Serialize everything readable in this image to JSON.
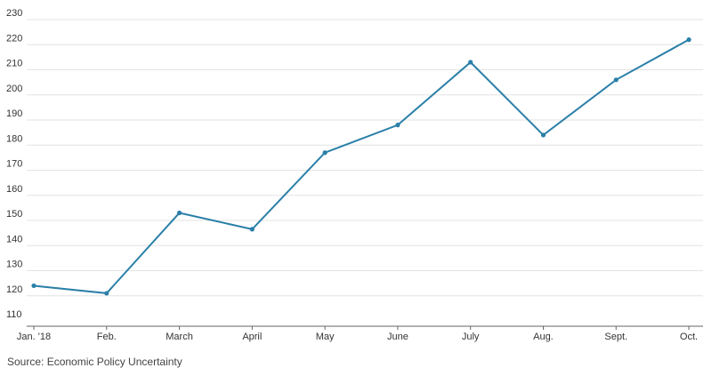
{
  "source": "Source: Economic Policy Uncertainty",
  "colors": {
    "line": "#2a7fa8",
    "grid": "#e3e3e3",
    "axis": "#666666"
  },
  "chart_data": {
    "type": "line",
    "title": "",
    "xlabel": "",
    "ylabel": "",
    "categories": [
      "Jan. '18",
      "Feb.",
      "March",
      "April",
      "May",
      "June",
      "July",
      "Aug.",
      "Sept.",
      "Oct."
    ],
    "series": [
      {
        "values": [
          124,
          121,
          153,
          146.5,
          177,
          188,
          213,
          184,
          206,
          222
        ]
      }
    ],
    "ylim": [
      110,
      230
    ],
    "yticks": [
      110,
      120,
      130,
      140,
      150,
      160,
      170,
      180,
      190,
      200,
      210,
      220,
      230
    ],
    "grid": true,
    "markers": true
  }
}
